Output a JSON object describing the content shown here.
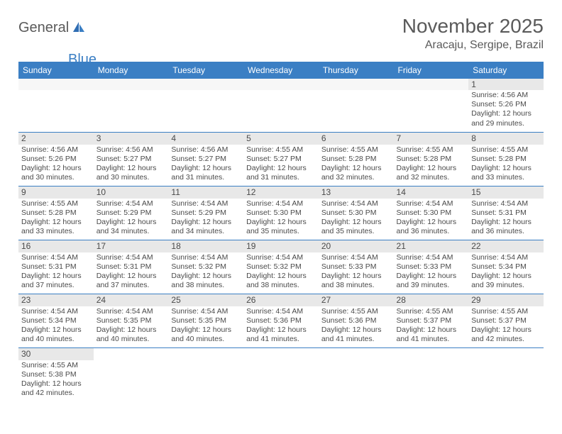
{
  "logo": {
    "text1": "General",
    "text2": "Blue"
  },
  "title": "November 2025",
  "location": "Aracaju, Sergipe, Brazil",
  "colors": {
    "header_bg": "#3b7fc4",
    "header_text": "#ffffff",
    "daynum_bg": "#e8e8e8",
    "blank_bg": "#f7f7f7",
    "border": "#3b7fc4",
    "text": "#4a4a4a"
  },
  "day_header_labels": [
    "Sunday",
    "Monday",
    "Tuesday",
    "Wednesday",
    "Thursday",
    "Friday",
    "Saturday"
  ],
  "weeks": [
    [
      {
        "blank": true
      },
      {
        "blank": true
      },
      {
        "blank": true
      },
      {
        "blank": true
      },
      {
        "blank": true
      },
      {
        "blank": true
      },
      {
        "n": "1",
        "sr": "Sunrise: 4:56 AM",
        "ss": "Sunset: 5:26 PM",
        "d1": "Daylight: 12 hours",
        "d2": "and 29 minutes."
      }
    ],
    [
      {
        "n": "2",
        "sr": "Sunrise: 4:56 AM",
        "ss": "Sunset: 5:26 PM",
        "d1": "Daylight: 12 hours",
        "d2": "and 30 minutes."
      },
      {
        "n": "3",
        "sr": "Sunrise: 4:56 AM",
        "ss": "Sunset: 5:27 PM",
        "d1": "Daylight: 12 hours",
        "d2": "and 30 minutes."
      },
      {
        "n": "4",
        "sr": "Sunrise: 4:56 AM",
        "ss": "Sunset: 5:27 PM",
        "d1": "Daylight: 12 hours",
        "d2": "and 31 minutes."
      },
      {
        "n": "5",
        "sr": "Sunrise: 4:55 AM",
        "ss": "Sunset: 5:27 PM",
        "d1": "Daylight: 12 hours",
        "d2": "and 31 minutes."
      },
      {
        "n": "6",
        "sr": "Sunrise: 4:55 AM",
        "ss": "Sunset: 5:28 PM",
        "d1": "Daylight: 12 hours",
        "d2": "and 32 minutes."
      },
      {
        "n": "7",
        "sr": "Sunrise: 4:55 AM",
        "ss": "Sunset: 5:28 PM",
        "d1": "Daylight: 12 hours",
        "d2": "and 32 minutes."
      },
      {
        "n": "8",
        "sr": "Sunrise: 4:55 AM",
        "ss": "Sunset: 5:28 PM",
        "d1": "Daylight: 12 hours",
        "d2": "and 33 minutes."
      }
    ],
    [
      {
        "n": "9",
        "sr": "Sunrise: 4:55 AM",
        "ss": "Sunset: 5:28 PM",
        "d1": "Daylight: 12 hours",
        "d2": "and 33 minutes."
      },
      {
        "n": "10",
        "sr": "Sunrise: 4:54 AM",
        "ss": "Sunset: 5:29 PM",
        "d1": "Daylight: 12 hours",
        "d2": "and 34 minutes."
      },
      {
        "n": "11",
        "sr": "Sunrise: 4:54 AM",
        "ss": "Sunset: 5:29 PM",
        "d1": "Daylight: 12 hours",
        "d2": "and 34 minutes."
      },
      {
        "n": "12",
        "sr": "Sunrise: 4:54 AM",
        "ss": "Sunset: 5:30 PM",
        "d1": "Daylight: 12 hours",
        "d2": "and 35 minutes."
      },
      {
        "n": "13",
        "sr": "Sunrise: 4:54 AM",
        "ss": "Sunset: 5:30 PM",
        "d1": "Daylight: 12 hours",
        "d2": "and 35 minutes."
      },
      {
        "n": "14",
        "sr": "Sunrise: 4:54 AM",
        "ss": "Sunset: 5:30 PM",
        "d1": "Daylight: 12 hours",
        "d2": "and 36 minutes."
      },
      {
        "n": "15",
        "sr": "Sunrise: 4:54 AM",
        "ss": "Sunset: 5:31 PM",
        "d1": "Daylight: 12 hours",
        "d2": "and 36 minutes."
      }
    ],
    [
      {
        "n": "16",
        "sr": "Sunrise: 4:54 AM",
        "ss": "Sunset: 5:31 PM",
        "d1": "Daylight: 12 hours",
        "d2": "and 37 minutes."
      },
      {
        "n": "17",
        "sr": "Sunrise: 4:54 AM",
        "ss": "Sunset: 5:31 PM",
        "d1": "Daylight: 12 hours",
        "d2": "and 37 minutes."
      },
      {
        "n": "18",
        "sr": "Sunrise: 4:54 AM",
        "ss": "Sunset: 5:32 PM",
        "d1": "Daylight: 12 hours",
        "d2": "and 38 minutes."
      },
      {
        "n": "19",
        "sr": "Sunrise: 4:54 AM",
        "ss": "Sunset: 5:32 PM",
        "d1": "Daylight: 12 hours",
        "d2": "and 38 minutes."
      },
      {
        "n": "20",
        "sr": "Sunrise: 4:54 AM",
        "ss": "Sunset: 5:33 PM",
        "d1": "Daylight: 12 hours",
        "d2": "and 38 minutes."
      },
      {
        "n": "21",
        "sr": "Sunrise: 4:54 AM",
        "ss": "Sunset: 5:33 PM",
        "d1": "Daylight: 12 hours",
        "d2": "and 39 minutes."
      },
      {
        "n": "22",
        "sr": "Sunrise: 4:54 AM",
        "ss": "Sunset: 5:34 PM",
        "d1": "Daylight: 12 hours",
        "d2": "and 39 minutes."
      }
    ],
    [
      {
        "n": "23",
        "sr": "Sunrise: 4:54 AM",
        "ss": "Sunset: 5:34 PM",
        "d1": "Daylight: 12 hours",
        "d2": "and 40 minutes."
      },
      {
        "n": "24",
        "sr": "Sunrise: 4:54 AM",
        "ss": "Sunset: 5:35 PM",
        "d1": "Daylight: 12 hours",
        "d2": "and 40 minutes."
      },
      {
        "n": "25",
        "sr": "Sunrise: 4:54 AM",
        "ss": "Sunset: 5:35 PM",
        "d1": "Daylight: 12 hours",
        "d2": "and 40 minutes."
      },
      {
        "n": "26",
        "sr": "Sunrise: 4:54 AM",
        "ss": "Sunset: 5:36 PM",
        "d1": "Daylight: 12 hours",
        "d2": "and 41 minutes."
      },
      {
        "n": "27",
        "sr": "Sunrise: 4:55 AM",
        "ss": "Sunset: 5:36 PM",
        "d1": "Daylight: 12 hours",
        "d2": "and 41 minutes."
      },
      {
        "n": "28",
        "sr": "Sunrise: 4:55 AM",
        "ss": "Sunset: 5:37 PM",
        "d1": "Daylight: 12 hours",
        "d2": "and 41 minutes."
      },
      {
        "n": "29",
        "sr": "Sunrise: 4:55 AM",
        "ss": "Sunset: 5:37 PM",
        "d1": "Daylight: 12 hours",
        "d2": "and 42 minutes."
      }
    ],
    [
      {
        "n": "30",
        "sr": "Sunrise: 4:55 AM",
        "ss": "Sunset: 5:38 PM",
        "d1": "Daylight: 12 hours",
        "d2": "and 42 minutes."
      },
      {
        "trailing": true
      },
      {
        "trailing": true
      },
      {
        "trailing": true
      },
      {
        "trailing": true
      },
      {
        "trailing": true
      },
      {
        "trailing": true
      }
    ]
  ]
}
